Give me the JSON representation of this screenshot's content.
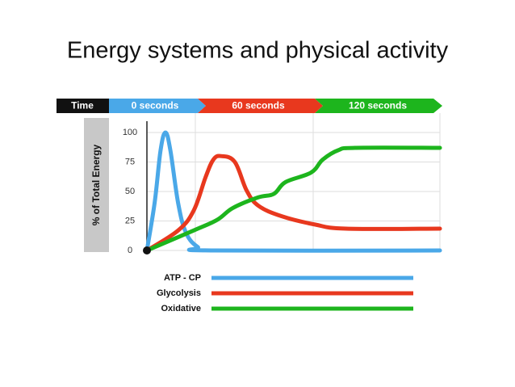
{
  "chart_data": {
    "type": "line",
    "title": "Energy systems and physical activity",
    "x_banner": [
      "Time",
      "0 seconds",
      "60 seconds",
      "120 seconds"
    ],
    "ylabel": "% of Total Energy",
    "xlim": [
      0,
      150
    ],
    "ylim": [
      0,
      100
    ],
    "yticks": [
      0,
      25,
      50,
      75,
      100
    ],
    "grid": true,
    "series": [
      {
        "name": "ATP - CP",
        "color": "#4aa8e8",
        "x": [
          0,
          4,
          7,
          9.5,
          12,
          16,
          20,
          26,
          33,
          150
        ],
        "values": [
          0,
          41,
          85,
          100,
          85,
          40,
          15,
          3,
          0,
          0
        ]
      },
      {
        "name": "Glycolysis",
        "color": "#e8381e",
        "x": [
          0,
          16,
          24,
          30,
          34,
          38,
          45,
          51,
          57,
          69,
          86,
          102,
          150
        ],
        "values": [
          0,
          17,
          34,
          62,
          77,
          80,
          75,
          51,
          38,
          29,
          22,
          18.5,
          18.5
        ]
      },
      {
        "name": "Oxidative",
        "color": "#1db51d",
        "x": [
          0,
          24,
          36,
          44,
          57,
          65,
          71,
          84,
          90,
          98,
          107,
          150
        ],
        "values": [
          0,
          17,
          26,
          36,
          45,
          48,
          58,
          66,
          77,
          85,
          87,
          87
        ]
      }
    ]
  }
}
